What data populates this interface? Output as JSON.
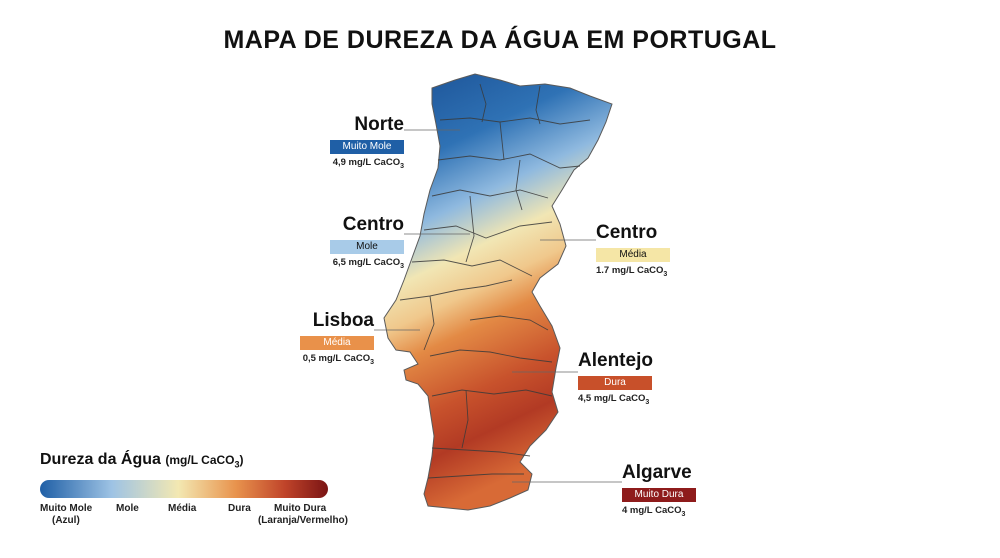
{
  "title": "MAPA DE DUREZA DA ÁGUA EM PORTUGAL",
  "regions": [
    {
      "name": "Norte",
      "category": "Muito Mole",
      "value": "4,9 mg/L CaCO",
      "subscript": "3",
      "color": "#1f5fa6"
    },
    {
      "name": "Centro",
      "category": "Mole",
      "value": "6,5 mg/L CaCO",
      "subscript": "3",
      "color": "#a8cbe8"
    },
    {
      "name": "Centro",
      "category": "Média",
      "value": "1.7 mg/L CaCO",
      "subscript": "3",
      "color": "#f5e6a6"
    },
    {
      "name": "Lisboa",
      "category": "Média",
      "value": "0,5 mg/L CaCO",
      "subscript": "3",
      "color": "#e9914a"
    },
    {
      "name": "Alentejo",
      "category": "Dura",
      "value": "4,5 mg/L CaCO",
      "subscript": "3",
      "color": "#c8502a"
    },
    {
      "name": "Algarve",
      "category": "Muito Dura",
      "value": "4 mg/L CaCO",
      "subscript": "3",
      "color": "#8e1b1b"
    }
  ],
  "legend": {
    "title": "Dureza da Água",
    "unit": "(mg/L CaCO",
    "unit_sub": "3",
    "unit_close": ")",
    "labels": [
      {
        "line1": "Muito Mole",
        "line2": "(Azul)"
      },
      {
        "line1": "Mole",
        "line2": ""
      },
      {
        "line1": "Média",
        "line2": ""
      },
      {
        "line1": "Dura",
        "line2": ""
      },
      {
        "line1": "Muito Dura",
        "line2": "(Laranja/Vermelho)"
      }
    ],
    "gradient": [
      "#1f5fa6",
      "#9ec3e4",
      "#f3e8b2",
      "#e8934d",
      "#c0442a",
      "#7a1414"
    ]
  }
}
